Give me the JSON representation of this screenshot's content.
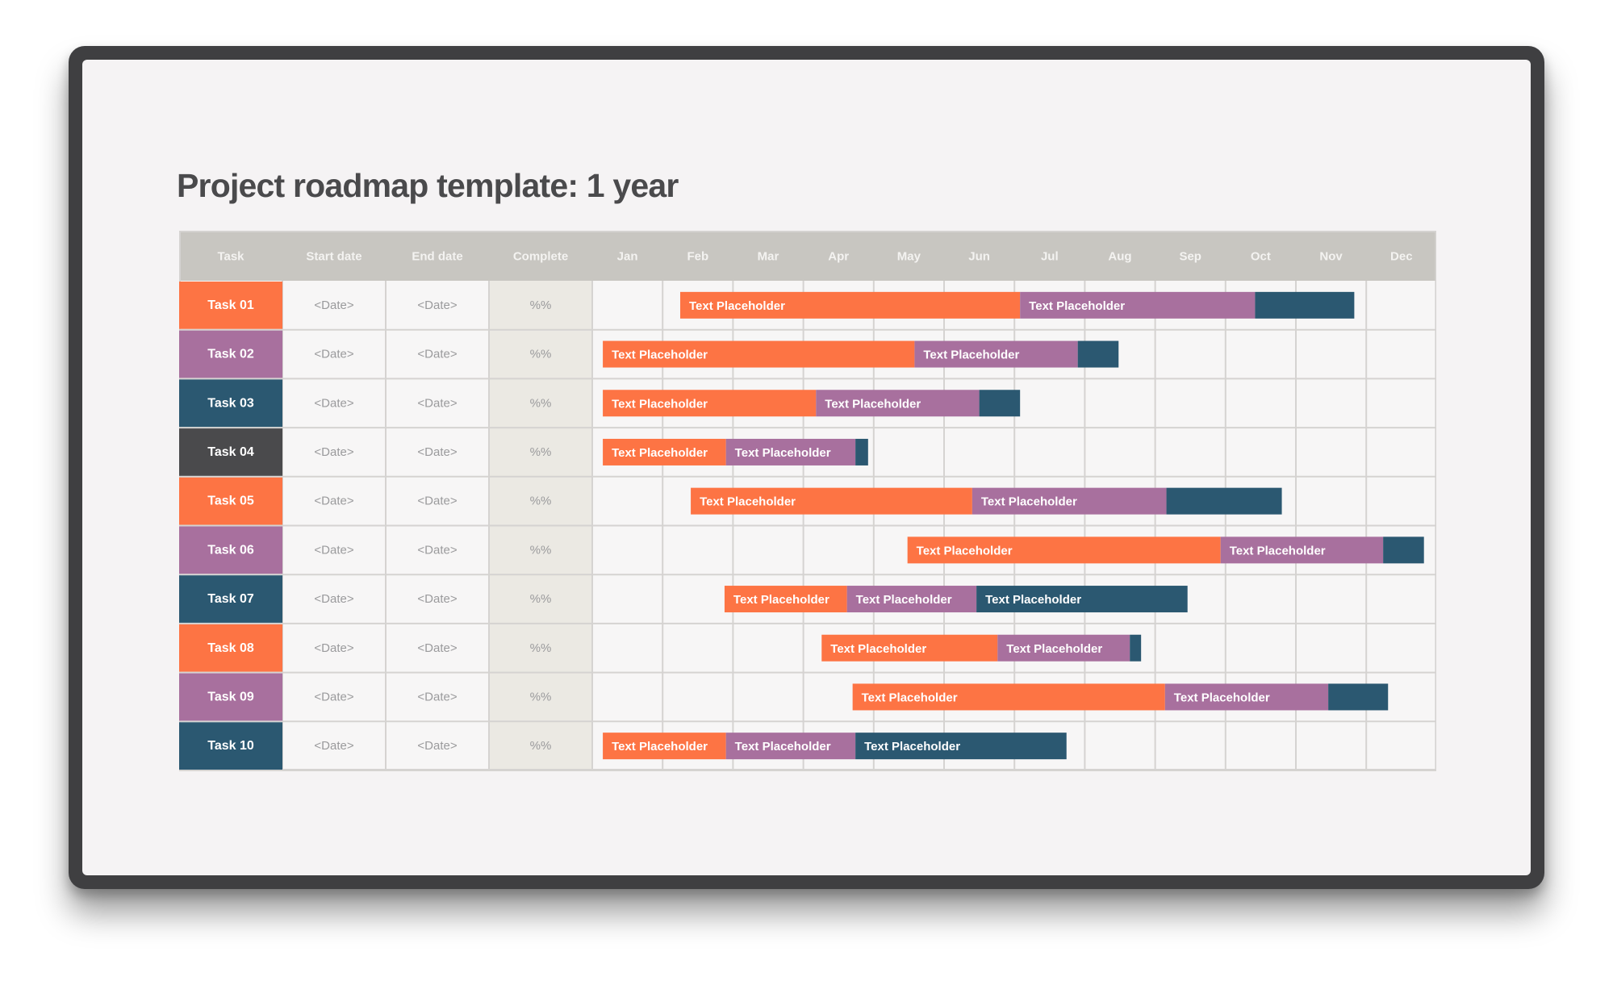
{
  "title": "Project roadmap template: 1 year",
  "colors": {
    "orange": "#fd7444",
    "purple": "#a8709e",
    "teal": "#2b5871",
    "charcoal": "#4a4a4c",
    "header_bg": "#c8c6c1",
    "complete_bg": "#ebe9e3",
    "grid": "#d5d3d1"
  },
  "chart_data": {
    "type": "gantt",
    "title": "Project roadmap template: 1 year",
    "columns": [
      "Task",
      "Start date",
      "End date",
      "Complete"
    ],
    "months": [
      "Jan",
      "Feb",
      "Mar",
      "Apr",
      "May",
      "Jun",
      "Jul",
      "Aug",
      "Sep",
      "Oct",
      "Nov",
      "Dec"
    ],
    "x_unit": "month index (0 = start of Jan, 12 = end of Dec)",
    "tasks": [
      {
        "name": "Task 01",
        "color": "orange",
        "start_date": "<Date>",
        "end_date": "<Date>",
        "complete": "%%",
        "segments": [
          {
            "label": "Text Placeholder",
            "color": "orange",
            "start": 1.25,
            "end": 6.08
          },
          {
            "label": "Text Placeholder",
            "color": "purple",
            "start": 6.08,
            "end": 9.42
          },
          {
            "label": "",
            "color": "teal",
            "start": 9.42,
            "end": 10.83
          }
        ]
      },
      {
        "name": "Task 02",
        "color": "purple",
        "start_date": "<Date>",
        "end_date": "<Date>",
        "complete": "%%",
        "segments": [
          {
            "label": "Text Placeholder",
            "color": "orange",
            "start": 0.15,
            "end": 4.58
          },
          {
            "label": "Text Placeholder",
            "color": "purple",
            "start": 4.58,
            "end": 6.9
          },
          {
            "label": "",
            "color": "teal",
            "start": 6.9,
            "end": 7.48
          }
        ]
      },
      {
        "name": "Task 03",
        "color": "teal",
        "start_date": "<Date>",
        "end_date": "<Date>",
        "complete": "%%",
        "segments": [
          {
            "label": "Text Placeholder",
            "color": "orange",
            "start": 0.15,
            "end": 3.18
          },
          {
            "label": "Text Placeholder",
            "color": "purple",
            "start": 3.18,
            "end": 5.5
          },
          {
            "label": "",
            "color": "teal",
            "start": 5.5,
            "end": 6.08
          }
        ]
      },
      {
        "name": "Task 04",
        "color": "charcoal",
        "start_date": "<Date>",
        "end_date": "<Date>",
        "complete": "%%",
        "segments": [
          {
            "label": "Text Placeholder",
            "color": "orange",
            "start": 0.15,
            "end": 1.9
          },
          {
            "label": "Text Placeholder",
            "color": "purple",
            "start": 1.9,
            "end": 3.74
          },
          {
            "label": "",
            "color": "teal",
            "start": 3.74,
            "end": 3.92
          }
        ]
      },
      {
        "name": "Task 05",
        "color": "orange",
        "start_date": "<Date>",
        "end_date": "<Date>",
        "complete": "%%",
        "segments": [
          {
            "label": "Text Placeholder",
            "color": "orange",
            "start": 1.4,
            "end": 5.4
          },
          {
            "label": "Text Placeholder",
            "color": "purple",
            "start": 5.4,
            "end": 8.16
          },
          {
            "label": "",
            "color": "teal",
            "start": 8.16,
            "end": 9.8
          }
        ]
      },
      {
        "name": "Task 06",
        "color": "purple",
        "start_date": "<Date>",
        "end_date": "<Date>",
        "complete": "%%",
        "segments": [
          {
            "label": "Text Placeholder",
            "color": "orange",
            "start": 4.48,
            "end": 8.93
          },
          {
            "label": "Text Placeholder",
            "color": "purple",
            "start": 8.93,
            "end": 11.24
          },
          {
            "label": "",
            "color": "teal",
            "start": 11.24,
            "end": 11.82
          }
        ]
      },
      {
        "name": "Task 07",
        "color": "teal",
        "start_date": "<Date>",
        "end_date": "<Date>",
        "complete": "%%",
        "segments": [
          {
            "label": "Text Placeholder",
            "color": "orange",
            "start": 1.88,
            "end": 3.62
          },
          {
            "label": "Text Placeholder",
            "color": "purple",
            "start": 3.62,
            "end": 5.46
          },
          {
            "label": "Text Placeholder",
            "color": "teal",
            "start": 5.46,
            "end": 8.46
          }
        ]
      },
      {
        "name": "Task 08",
        "color": "orange",
        "start_date": "<Date>",
        "end_date": "<Date>",
        "complete": "%%",
        "segments": [
          {
            "label": "Text Placeholder",
            "color": "orange",
            "start": 3.26,
            "end": 5.76
          },
          {
            "label": "Text Placeholder",
            "color": "purple",
            "start": 5.76,
            "end": 7.64
          },
          {
            "label": "",
            "color": "teal",
            "start": 7.64,
            "end": 7.8
          }
        ]
      },
      {
        "name": "Task 09",
        "color": "purple",
        "start_date": "<Date>",
        "end_date": "<Date>",
        "complete": "%%",
        "segments": [
          {
            "label": "Text Placeholder",
            "color": "orange",
            "start": 3.7,
            "end": 8.14
          },
          {
            "label": "Text Placeholder",
            "color": "purple",
            "start": 8.14,
            "end": 10.46
          },
          {
            "label": "",
            "color": "teal",
            "start": 10.46,
            "end": 11.31
          }
        ]
      },
      {
        "name": "Task 10",
        "color": "teal",
        "start_date": "<Date>",
        "end_date": "<Date>",
        "complete": "%%",
        "segments": [
          {
            "label": "Text Placeholder",
            "color": "orange",
            "start": 0.15,
            "end": 1.9
          },
          {
            "label": "Text Placeholder",
            "color": "purple",
            "start": 1.9,
            "end": 3.74
          },
          {
            "label": "Text Placeholder",
            "color": "teal",
            "start": 3.74,
            "end": 6.74
          }
        ]
      }
    ]
  }
}
